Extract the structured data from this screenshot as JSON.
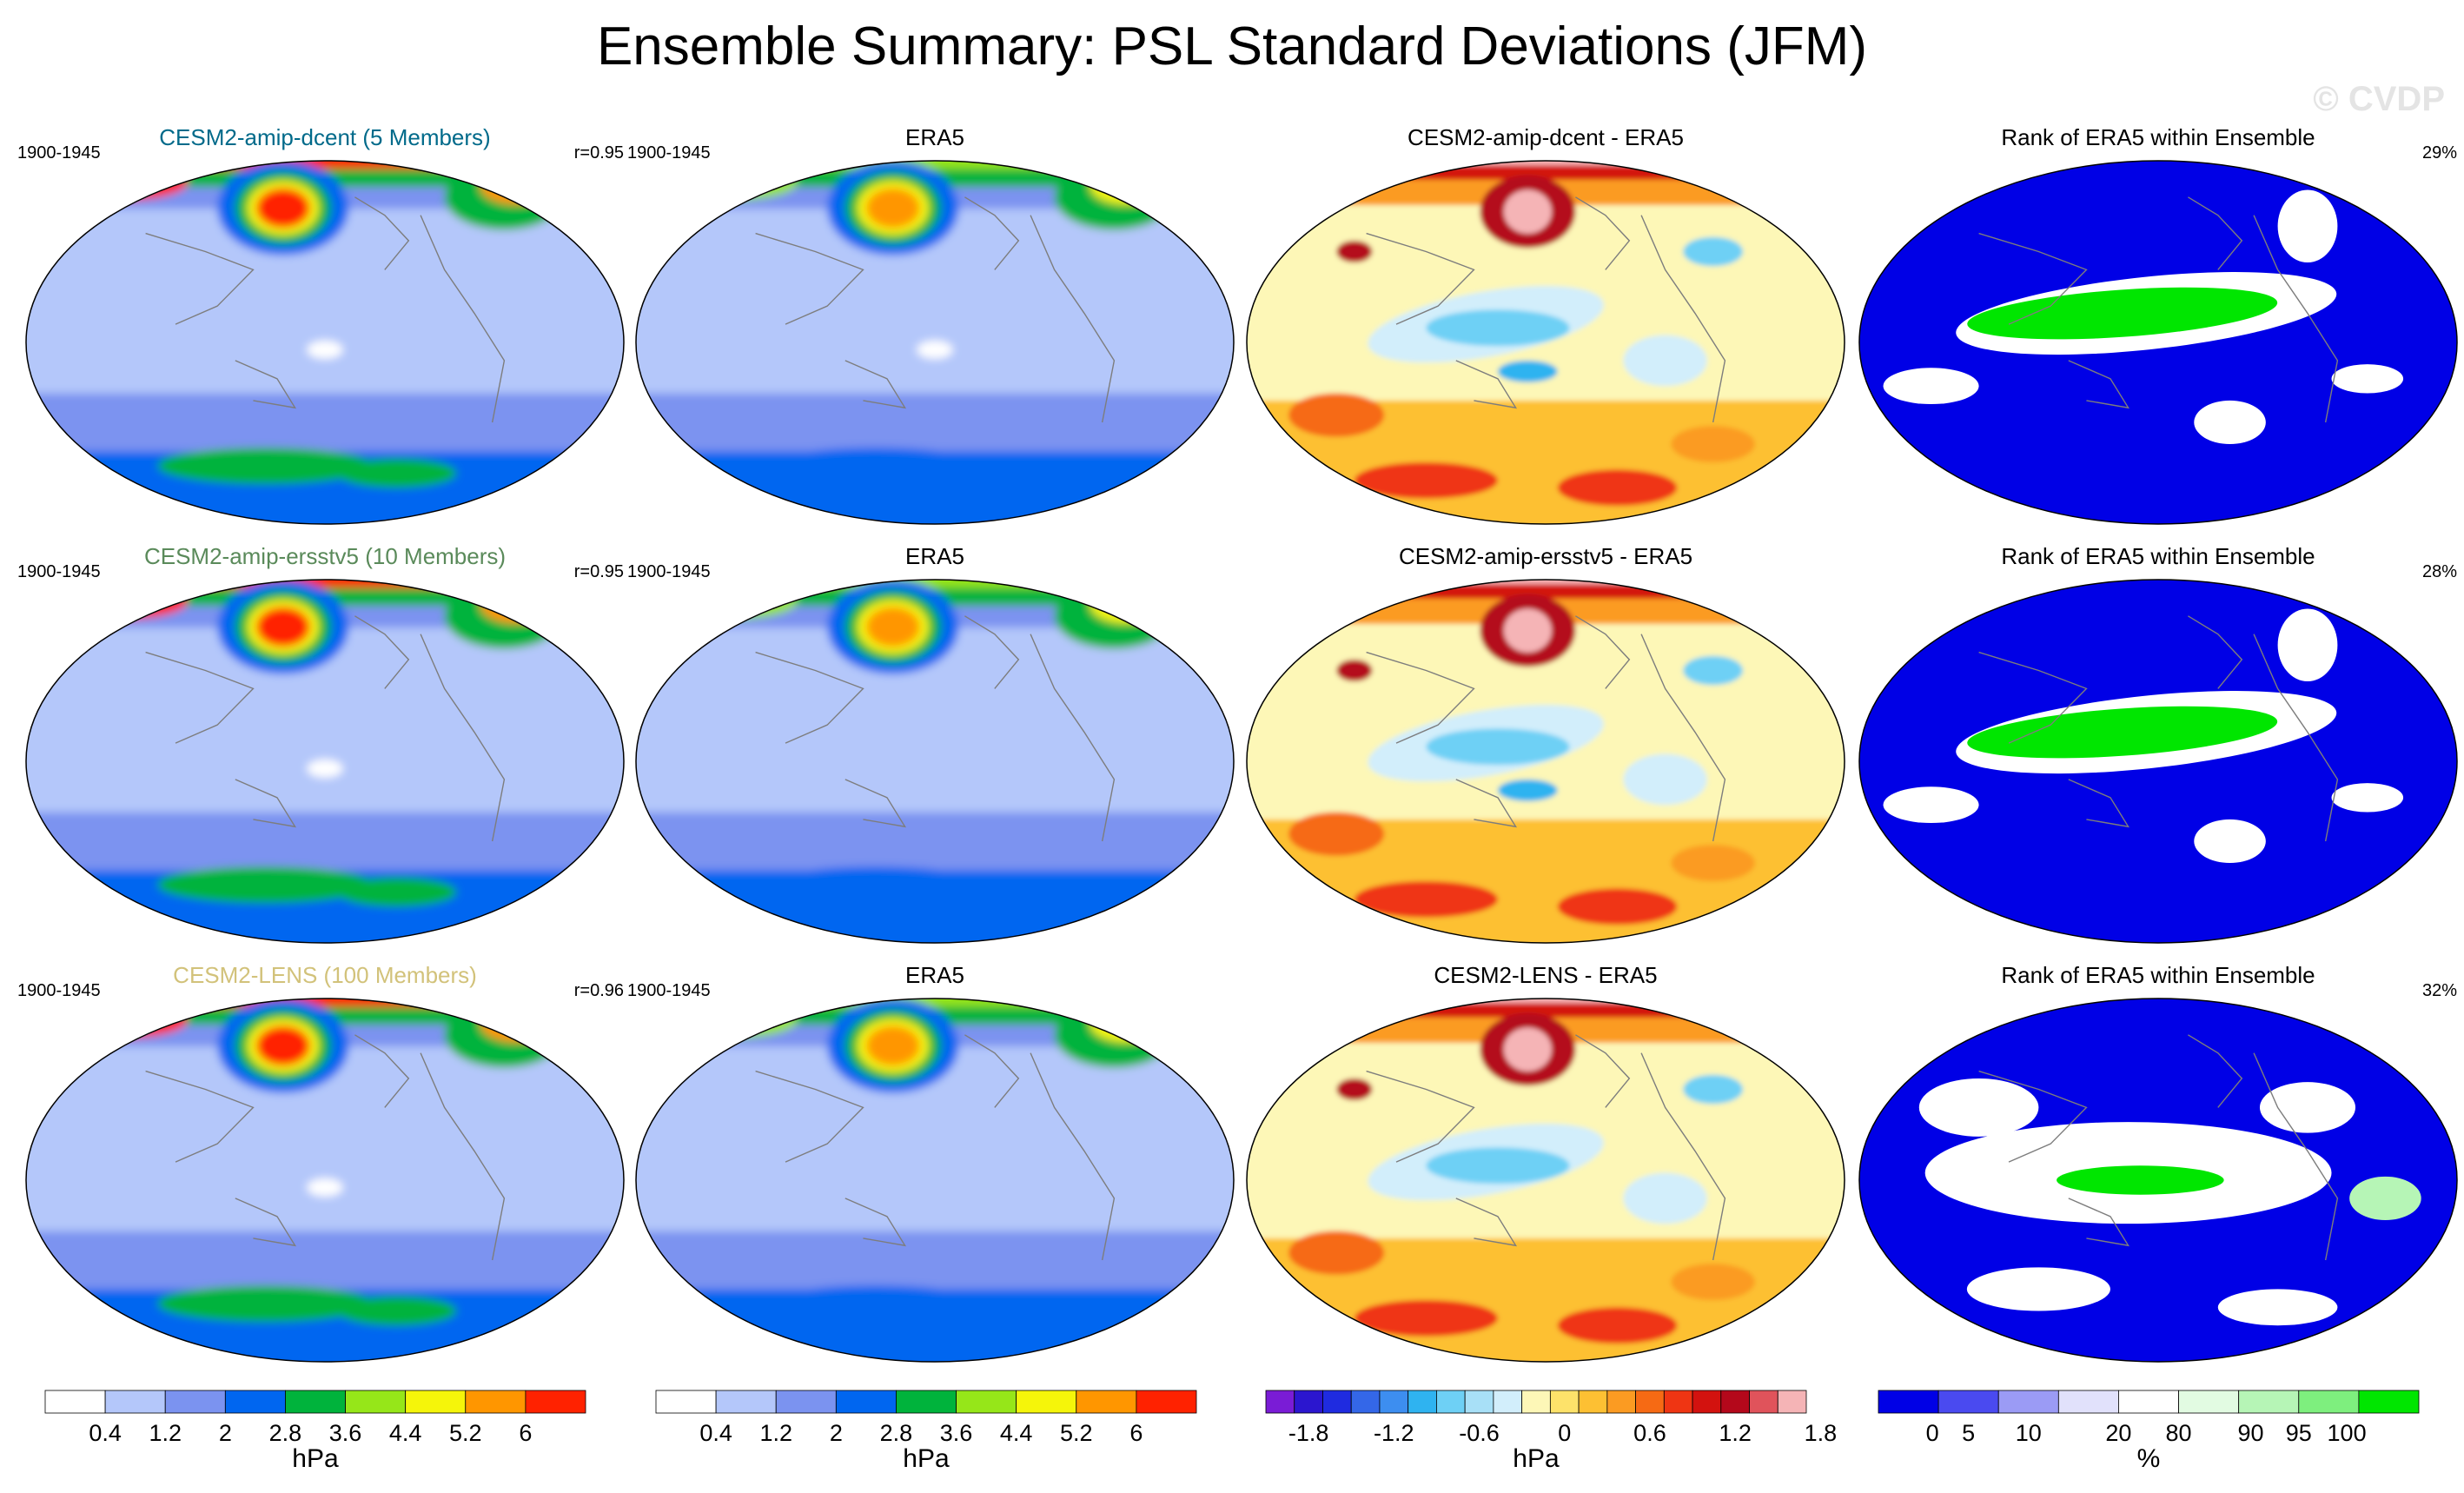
{
  "title": "Ensemble Summary: PSL Standard Deviations (JFM)",
  "watermark": "© CVDP",
  "colors": {
    "sd": [
      "#ffffff",
      "#b4c7fa",
      "#7b93f0",
      "#0066f0",
      "#00b33c",
      "#96e619",
      "#f5f50a",
      "#ff9600",
      "#ff2200"
    ],
    "sd_low_band": "#b4c7fa",
    "diff_neg": [
      "#7a1cd6",
      "#2b16cf",
      "#1f2be0",
      "#3467e8",
      "#3d8ef0",
      "#2fb3f0",
      "#6ed0f5",
      "#a8e0f7",
      "#d2eefb"
    ],
    "diff_pos": [
      "#fdf7b7",
      "#fde26a",
      "#fdc033",
      "#fb9b22",
      "#f66a14",
      "#ef3513",
      "#d3120f",
      "#b4081b",
      "#e0535b",
      "#f5b4b6"
    ],
    "rank": [
      "#0000e6",
      "#4a4af0",
      "#9b9bf5",
      "#e1e1fb",
      "#ffffff",
      "#e2fbe2",
      "#b6f5b6",
      "#7eef7e",
      "#00e600"
    ],
    "coast": "#7d7d7d"
  },
  "rows": [
    {
      "model": {
        "title": "CESM2-amip-dcent (5 Members)",
        "title_color": "#006a8a",
        "period": "1900-1945",
        "r": "r=0.95"
      },
      "obs": {
        "title": "ERA5",
        "period": "1900-1945"
      },
      "diff": {
        "title": "CESM2-amip-dcent - ERA5"
      },
      "rank": {
        "title": "Rank of ERA5 within Ensemble",
        "pct": "29%"
      }
    },
    {
      "model": {
        "title": "CESM2-amip-ersstv5 (10 Members)",
        "title_color": "#5a8a5a",
        "period": "1900-1945",
        "r": "r=0.95"
      },
      "obs": {
        "title": "ERA5",
        "period": "1900-1945"
      },
      "diff": {
        "title": "CESM2-amip-ersstv5 - ERA5"
      },
      "rank": {
        "title": "Rank of ERA5 within Ensemble",
        "pct": "28%"
      }
    },
    {
      "model": {
        "title": "CESM2-LENS (100 Members)",
        "title_color": "#d2c27a",
        "period": "1900-1945",
        "r": "r=0.96"
      },
      "obs": {
        "title": "ERA5",
        "period": "1900-1945"
      },
      "diff": {
        "title": "CESM2-LENS - ERA5"
      },
      "rank": {
        "title": "Rank of ERA5 within Ensemble",
        "pct": "32%"
      }
    }
  ],
  "chart_data": [
    {
      "type": "heatmap",
      "name": "model-stddev-maps",
      "variable": "PSL standard deviation",
      "season": "JFM",
      "units": "hPa",
      "levels": [
        0.4,
        1.2,
        2,
        2.8,
        3.6,
        4.4,
        5.2,
        6
      ],
      "tick_labels": [
        "0.4",
        "1.2",
        "2",
        "2.8",
        "3.6",
        "4.4",
        "5.2",
        "6"
      ]
    },
    {
      "type": "heatmap",
      "name": "era5-stddev-maps",
      "units": "hPa",
      "levels": [
        0.4,
        1.2,
        2,
        2.8,
        3.6,
        4.4,
        5.2,
        6
      ],
      "tick_labels": [
        "0.4",
        "1.2",
        "2",
        "2.8",
        "3.6",
        "4.4",
        "5.2",
        "6"
      ]
    },
    {
      "type": "heatmap",
      "name": "difference-maps",
      "units": "hPa",
      "range": [
        -2.0,
        2.0
      ],
      "tick_labels": [
        "-1.8",
        "-1.2",
        "-0.6",
        "0",
        "0.6",
        "1.2",
        "1.8"
      ]
    },
    {
      "type": "heatmap",
      "name": "rank-maps",
      "units": "%",
      "tick_labels": [
        "0",
        "5",
        "10",
        "20",
        "80",
        "90",
        "95",
        "100"
      ]
    }
  ],
  "colorbars": {
    "sd": {
      "ticks": [
        "0.4",
        "1.2",
        "2",
        "2.8",
        "3.6",
        "4.4",
        "5.2",
        "6"
      ],
      "unit": "hPa"
    },
    "diff": {
      "ticks": [
        "-1.8",
        "-1.2",
        "-0.6",
        "0",
        "0.6",
        "1.2",
        "1.8"
      ],
      "unit": "hPa"
    },
    "rank": {
      "ticks": [
        "0",
        "5",
        "10",
        "20",
        "80",
        "90",
        "95",
        "100"
      ],
      "unit": "%"
    }
  }
}
